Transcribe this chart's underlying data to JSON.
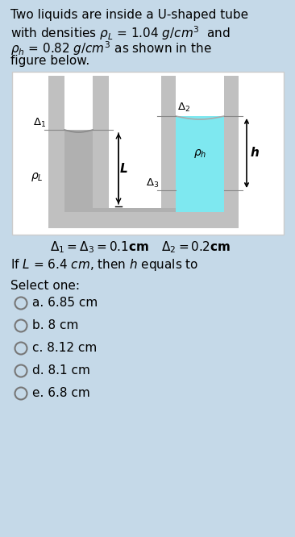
{
  "bg_color": "#c5d9e8",
  "title_lines": [
    "Two liquids are inside a U-shaped tube",
    "with densities $\\rho_L$ = 1.04 $g/cm^3$  and",
    "$\\rho_h$ = 0.82 $g/cm^3$ as shown in the",
    "figure below."
  ],
  "liquid_left_color": "#b0b0b0",
  "liquid_right_color": "#7ee8f0",
  "tube_wall_color": "#c0c0c0",
  "tube_outline_color": "#909090",
  "diagram_border": "#cccccc",
  "options": [
    "a. 6.85 cm",
    "b. 8 cm",
    "c. 8.12 cm",
    "d. 8.1 cm",
    "e. 6.8 cm"
  ]
}
